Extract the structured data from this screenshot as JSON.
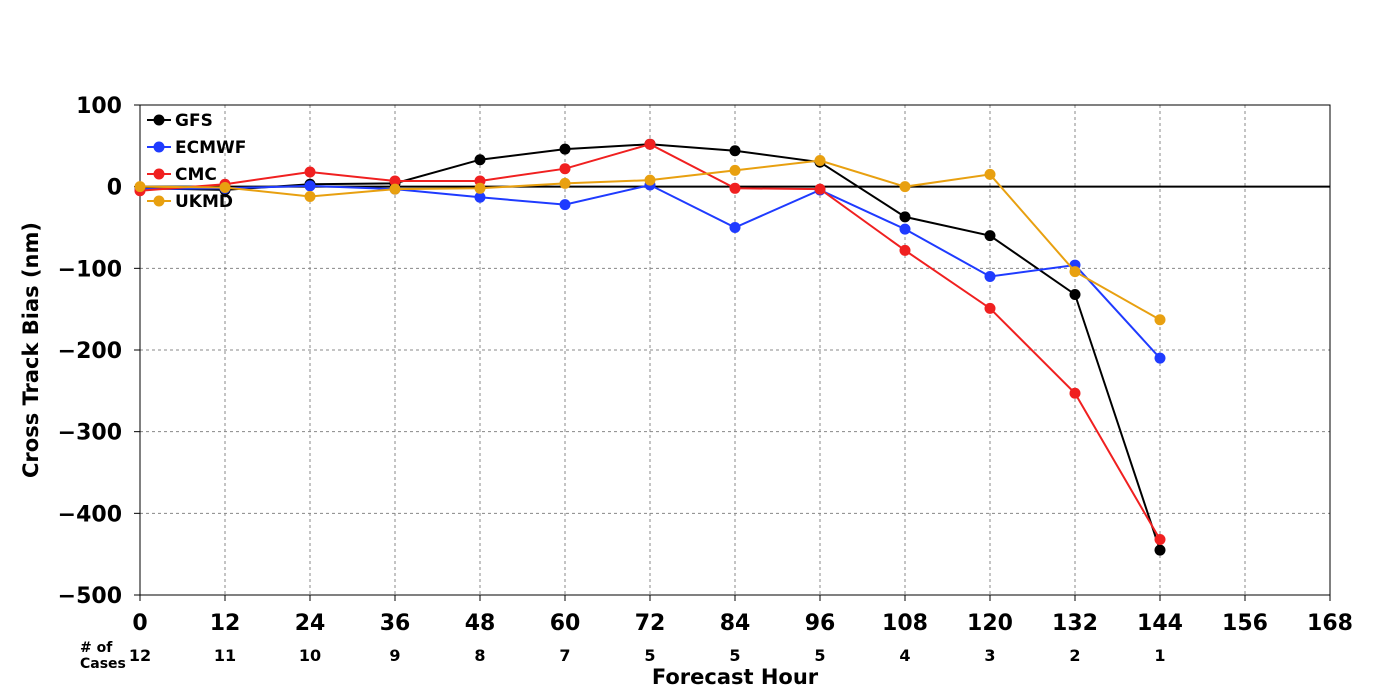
{
  "chart_data": {
    "type": "line",
    "xlabel": "Forecast Hour",
    "ylabel": "Cross Track Bias (nm)",
    "xlim": [
      0,
      168
    ],
    "ylim": [
      -500,
      100
    ],
    "x_ticks": [
      0,
      12,
      24,
      36,
      48,
      60,
      72,
      84,
      96,
      108,
      120,
      132,
      144,
      156,
      168
    ],
    "y_ticks": [
      100,
      0,
      -100,
      -200,
      -300,
      -400,
      -500
    ],
    "y_tick_labels": [
      "100",
      "0",
      "−100",
      "−200",
      "−300",
      "−400",
      "−500"
    ],
    "grid": true,
    "legend_position": "top-left",
    "cases_label": [
      "# of",
      "Cases"
    ],
    "cases": [
      {
        "x": 0,
        "n": "12"
      },
      {
        "x": 12,
        "n": "11"
      },
      {
        "x": 24,
        "n": "10"
      },
      {
        "x": 36,
        "n": "9"
      },
      {
        "x": 48,
        "n": "8"
      },
      {
        "x": 60,
        "n": "7"
      },
      {
        "x": 72,
        "n": "5"
      },
      {
        "x": 84,
        "n": "5"
      },
      {
        "x": 96,
        "n": "5"
      },
      {
        "x": 108,
        "n": "4"
      },
      {
        "x": 120,
        "n": "3"
      },
      {
        "x": 132,
        "n": "2"
      },
      {
        "x": 144,
        "n": "1"
      }
    ],
    "x": [
      0,
      12,
      24,
      36,
      48,
      60,
      72,
      84,
      96,
      108,
      120,
      132,
      144
    ],
    "series": [
      {
        "name": "GFS",
        "color": "#000000",
        "values": [
          -2,
          -4,
          3,
          4,
          33,
          46,
          52,
          44,
          30,
          -37,
          -60,
          -132,
          -445
        ]
      },
      {
        "name": "ECMWF",
        "color": "#1f3bff",
        "values": [
          -3,
          -2,
          1,
          -3,
          -13,
          -22,
          2,
          -50,
          -4,
          -52,
          -110,
          -96,
          -210
        ]
      },
      {
        "name": "CMC",
        "color": "#f02020",
        "values": [
          -5,
          3,
          18,
          7,
          7,
          22,
          52,
          -2,
          -3,
          -78,
          -149,
          -253,
          -432
        ]
      },
      {
        "name": "UKMD",
        "color": "#e8a010",
        "values": [
          0,
          -1,
          -12,
          -3,
          -2,
          4,
          8,
          20,
          32,
          0,
          15,
          -104,
          -163
        ]
      }
    ]
  }
}
